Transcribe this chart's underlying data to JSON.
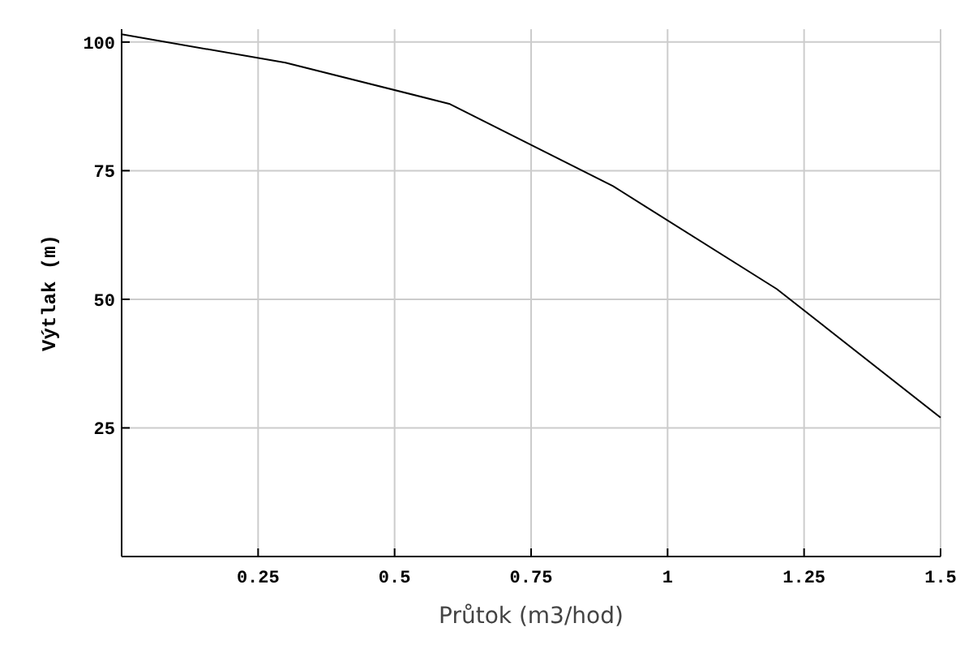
{
  "chart_data": {
    "type": "line",
    "xlabel": "Průtok (m3/hod)",
    "ylabel": "Výtlak (m)",
    "x": [
      0,
      0.3,
      0.6,
      0.9,
      1.2,
      1.5
    ],
    "series": [
      {
        "color": "#000000",
        "values": [
          101.5,
          96,
          88,
          72,
          52,
          27
        ]
      }
    ],
    "xlim": [
      0,
      1.5
    ],
    "xticks": [
      0.25,
      0.5,
      0.75,
      1,
      1.25,
      1.5
    ],
    "ylim": [
      0,
      102.5
    ],
    "yticks": [
      25,
      50,
      75,
      100
    ],
    "grid": true
  }
}
